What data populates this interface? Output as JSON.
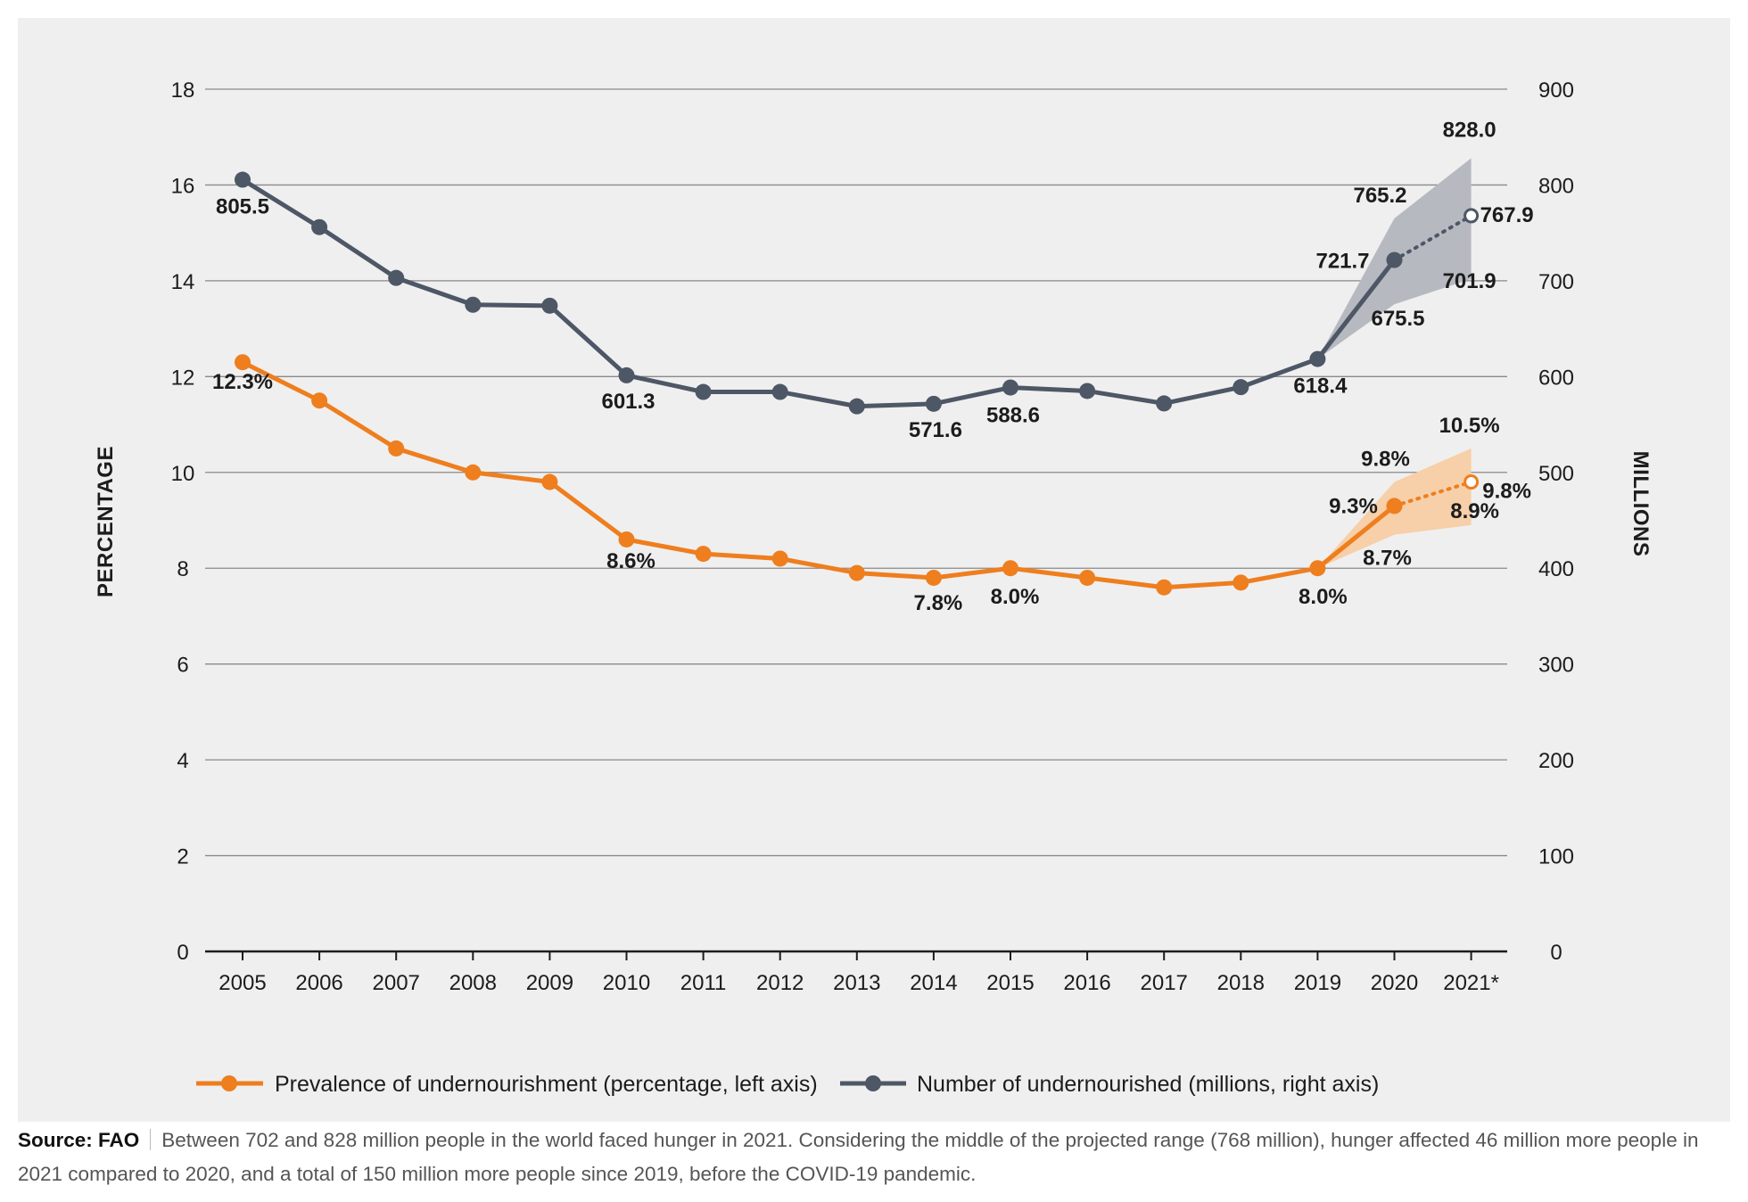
{
  "chart_data": {
    "type": "line",
    "categories": [
      "2005",
      "2006",
      "2007",
      "2008",
      "2009",
      "2010",
      "2011",
      "2012",
      "2013",
      "2014",
      "2015",
      "2016",
      "2017",
      "2018",
      "2019",
      "2020",
      "2021*"
    ],
    "y_left": {
      "label": "PERCENTAGE",
      "ticks": [
        "0",
        "2",
        "4",
        "6",
        "8",
        "10",
        "12",
        "14",
        "16",
        "18"
      ],
      "min": 0,
      "max": 18
    },
    "y_right": {
      "label": "MILLIONS",
      "ticks": [
        "0",
        "100",
        "200",
        "300",
        "400",
        "500",
        "600",
        "700",
        "800",
        "900"
      ],
      "min": 0,
      "max": 900
    },
    "grid": true,
    "legend_position": "bottom",
    "series": [
      {
        "name": "Prevalence of undernourishment (percentage, left axis)",
        "axis": "left",
        "color": "#ee7e1e",
        "values": [
          12.3,
          11.5,
          10.5,
          10.0,
          9.8,
          8.6,
          8.3,
          8.2,
          7.9,
          7.8,
          8.0,
          7.8,
          7.6,
          7.7,
          8.0,
          9.3,
          9.8
        ],
        "projected": "2021*",
        "range_2020": [
          8.7,
          9.8
        ],
        "range_2021": [
          8.9,
          10.5
        ]
      },
      {
        "name": "Number of undernourished (millions, right axis)",
        "axis": "right",
        "color": "#4d5766",
        "values": [
          805.5,
          756,
          703,
          675,
          674,
          601.3,
          584,
          584,
          569,
          571.6,
          588.6,
          585,
          572,
          589,
          618.4,
          721.7,
          767.9
        ],
        "projected": "2021*",
        "range_2020": [
          675.5,
          765.2
        ],
        "range_2021": [
          701.9,
          828.0
        ]
      }
    ],
    "data_labels": [
      {
        "series": 0,
        "text": "12.3%",
        "pos": "0"
      },
      {
        "series": 0,
        "text": "8.6%",
        "pos": "5"
      },
      {
        "series": 0,
        "text": "7.8%",
        "pos": "9"
      },
      {
        "series": 0,
        "text": "8.0%",
        "pos": "10"
      },
      {
        "series": 0,
        "text": "8.0%",
        "pos": "14"
      },
      {
        "series": 0,
        "text": "9.3%",
        "pos": "15"
      },
      {
        "series": 0,
        "text": "9.8%",
        "pos": "15h"
      },
      {
        "series": 0,
        "text": "8.7%",
        "pos": "15l"
      },
      {
        "series": 0,
        "text": "9.8%",
        "pos": "16"
      },
      {
        "series": 0,
        "text": "10.5%",
        "pos": "16h"
      },
      {
        "series": 0,
        "text": "8.9%",
        "pos": "16l"
      },
      {
        "series": 1,
        "text": "805.5",
        "pos": "0"
      },
      {
        "series": 1,
        "text": "601.3",
        "pos": "5"
      },
      {
        "series": 1,
        "text": "571.6",
        "pos": "9"
      },
      {
        "series": 1,
        "text": "588.6",
        "pos": "10"
      },
      {
        "series": 1,
        "text": "618.4",
        "pos": "14"
      },
      {
        "series": 1,
        "text": "721.7",
        "pos": "15"
      },
      {
        "series": 1,
        "text": "765.2",
        "pos": "15h"
      },
      {
        "series": 1,
        "text": "675.5",
        "pos": "15l"
      },
      {
        "series": 1,
        "text": "767.9",
        "pos": "16"
      },
      {
        "series": 1,
        "text": "828.0",
        "pos": "16h"
      },
      {
        "series": 1,
        "text": "701.9",
        "pos": "16l"
      }
    ],
    "band_colors": {
      "orange": "#f7cfa8",
      "gray": "#b7b9c1"
    }
  },
  "caption": {
    "source": "Source: FAO",
    "text": "Between 702 and 828 million people in the world faced hunger in 2021. Considering the middle of the projected range (768 million), hunger affected 46 million more people in 2021 compared to 2020, and a total of 150 million more people since 2019, before the COVID-19 pandemic."
  }
}
